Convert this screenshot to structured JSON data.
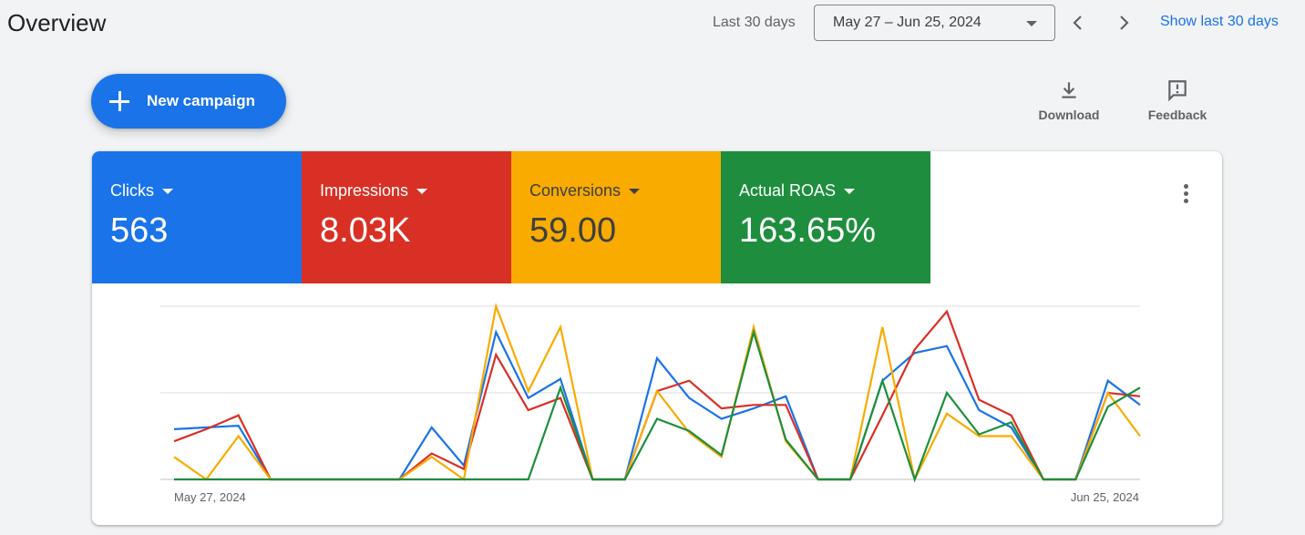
{
  "header": {
    "title": "Overview",
    "range_label": "Last 30 days",
    "date_range": "May 27 – Jun 25, 2024",
    "show_last": "Show last 30 days",
    "prev_icon": "chevron-left-icon",
    "next_icon": "chevron-right-icon"
  },
  "actions": {
    "new_campaign": "New campaign",
    "download": "Download",
    "feedback": "Feedback"
  },
  "metrics": [
    {
      "name": "Clicks",
      "value": "563",
      "color": "#1a73e8"
    },
    {
      "name": "Impressions",
      "value": "8.03K",
      "color": "#d93025"
    },
    {
      "name": "Conversions",
      "value": "59.00",
      "color": "#f9ab00"
    },
    {
      "name": "Actual ROAS",
      "value": "163.65%",
      "color": "#1e8e3e"
    }
  ],
  "chart_data": {
    "type": "line",
    "x_start_label": "May 27, 2024",
    "x_end_label": "Jun 25, 2024",
    "grid": true,
    "ylim": [
      0,
      1
    ],
    "series": [
      {
        "name": "Clicks",
        "color": "#1a73e8",
        "values": [
          0.29,
          0.3,
          0.31,
          0,
          0,
          0,
          0,
          0,
          0.3,
          0.08,
          0.85,
          0.47,
          0.58,
          0,
          0,
          0.7,
          0.47,
          0.35,
          0.41,
          0.48,
          0,
          0,
          0.57,
          0.73,
          0.77,
          0.4,
          0.3,
          0,
          0,
          0.57,
          0.43
        ]
      },
      {
        "name": "Impressions",
        "color": "#d93025",
        "values": [
          0.22,
          0.29,
          0.37,
          0,
          0,
          0,
          0,
          0,
          0.15,
          0.06,
          0.72,
          0.4,
          0.47,
          0,
          0,
          0.51,
          0.57,
          0.41,
          0.43,
          0.43,
          0,
          0,
          0.37,
          0.75,
          0.97,
          0.46,
          0.37,
          0,
          0,
          0.5,
          0.48
        ]
      },
      {
        "name": "Conversions",
        "color": "#f9ab00",
        "values": [
          0.13,
          0,
          0.25,
          0,
          0,
          0,
          0,
          0,
          0.13,
          0,
          1.0,
          0.51,
          0.88,
          0,
          0,
          0.51,
          0.27,
          0.13,
          0.88,
          0.22,
          0,
          0,
          0.88,
          0,
          0.38,
          0.25,
          0.25,
          0,
          0,
          0.5,
          0.25
        ]
      },
      {
        "name": "Actual ROAS",
        "color": "#1e8e3e",
        "values": [
          0,
          0,
          0,
          0,
          0,
          0,
          0,
          0,
          0,
          0,
          0,
          0,
          0.53,
          0,
          0,
          0.35,
          0.28,
          0.14,
          0.85,
          0.23,
          0,
          0,
          0.57,
          0,
          0.5,
          0.26,
          0.33,
          0,
          0,
          0.42,
          0.53
        ]
      }
    ]
  }
}
